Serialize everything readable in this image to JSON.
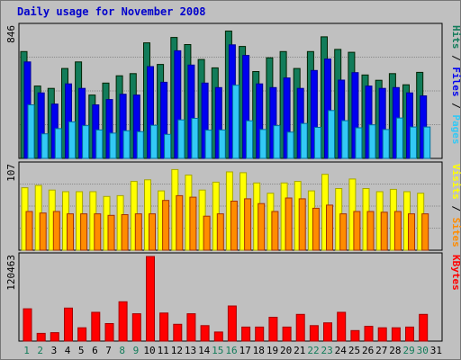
{
  "title": "Daily usage for November 2008",
  "colors": {
    "hits": "#127c5a",
    "files": "#0000f0",
    "pages": "#33c9f5",
    "visits": "#ffff00",
    "sites": "#ff8c00",
    "kbytes": "#ff0000",
    "weekend_day": "#127c5a",
    "weekday_day": "#000000",
    "title": "#0000cc",
    "panel": "#c0c0c0"
  },
  "chart_data": [
    {
      "type": "bar",
      "title": "Daily usage for November 2008",
      "ylabel_parts": [
        "Pages",
        "Files",
        "Hits"
      ],
      "ymax_label": "846",
      "ylim": [
        0,
        846
      ],
      "categories": [
        "1",
        "2",
        "3",
        "4",
        "5",
        "6",
        "7",
        "8",
        "9",
        "10",
        "11",
        "12",
        "13",
        "14",
        "15",
        "16",
        "17",
        "18",
        "19",
        "20",
        "21",
        "22",
        "23",
        "24",
        "25",
        "26",
        "27",
        "28",
        "29",
        "30",
        "31"
      ],
      "series": [
        {
          "name": "Hits",
          "values": [
            688,
            466,
            451,
            579,
            621,
            408,
            485,
            532,
            546,
            744,
            605,
            779,
            733,
            637,
            583,
            820,
            721,
            559,
            648,
            688,
            579,
            688,
            783,
            702,
            683,
            537,
            503,
            546,
            474,
            554,
            0
          ]
        },
        {
          "name": "Files",
          "values": [
            621,
            422,
            350,
            480,
            451,
            345,
            379,
            413,
            408,
            591,
            490,
            693,
            601,
            485,
            456,
            731,
            663,
            480,
            456,
            518,
            451,
            566,
            640,
            504,
            552,
            466,
            451,
            456,
            422,
            403,
            0
          ]
        },
        {
          "name": "Pages",
          "values": [
            345,
            158,
            192,
            235,
            211,
            183,
            163,
            178,
            172,
            213,
            155,
            248,
            258,
            182,
            183,
            471,
            242,
            186,
            211,
            169,
            225,
            200,
            308,
            243,
            197,
            216,
            186,
            260,
            202,
            202,
            0
          ]
        }
      ]
    },
    {
      "type": "bar",
      "ylabel_parts": [
        "Sites",
        "Visits"
      ],
      "ymax_label": "107",
      "ylim": [
        0,
        107
      ],
      "categories": [
        "1",
        "2",
        "3",
        "4",
        "5",
        "6",
        "7",
        "8",
        "9",
        "10",
        "11",
        "12",
        "13",
        "14",
        "15",
        "16",
        "17",
        "18",
        "19",
        "20",
        "21",
        "22",
        "23",
        "24",
        "25",
        "26",
        "27",
        "28",
        "29",
        "30",
        "31"
      ],
      "series": [
        {
          "name": "Visits",
          "values": [
            79,
            82,
            76,
            74,
            74,
            74,
            68,
            69,
            87,
            89,
            75,
            102,
            95,
            76,
            86,
            99,
            98,
            85,
            72,
            85,
            87,
            75,
            96,
            78,
            90,
            78,
            74,
            77,
            74,
            72,
            0
          ]
        },
        {
          "name": "Sites",
          "values": [
            49,
            47,
            49,
            46,
            46,
            46,
            44,
            45,
            46,
            46,
            63,
            69,
            67,
            43,
            46,
            62,
            65,
            59,
            49,
            66,
            65,
            53,
            57,
            46,
            49,
            49,
            48,
            49,
            46,
            46,
            0
          ]
        }
      ]
    },
    {
      "type": "bar",
      "ylabel_parts": [
        "KBytes"
      ],
      "ymax_label": "120463",
      "ylim": [
        0,
        120463
      ],
      "categories": [
        "1",
        "2",
        "3",
        "4",
        "5",
        "6",
        "7",
        "8",
        "9",
        "10",
        "11",
        "12",
        "13",
        "14",
        "15",
        "16",
        "17",
        "18",
        "19",
        "20",
        "21",
        "22",
        "23",
        "24",
        "25",
        "26",
        "27",
        "28",
        "29",
        "30",
        "31"
      ],
      "series": [
        {
          "name": "KBytes",
          "values": [
            46000,
            11000,
            12000,
            47000,
            19000,
            41000,
            25000,
            56000,
            39000,
            120463,
            40000,
            24000,
            39000,
            22000,
            13000,
            50000,
            20000,
            20000,
            34000,
            20000,
            38000,
            22000,
            26000,
            41000,
            15000,
            21000,
            19000,
            19000,
            20000,
            38000,
            0
          ]
        }
      ]
    }
  ],
  "day_colors": [
    "green",
    "green",
    "black",
    "black",
    "black",
    "black",
    "black",
    "green",
    "green",
    "black",
    "black",
    "black",
    "black",
    "black",
    "green",
    "green",
    "black",
    "black",
    "black",
    "black",
    "black",
    "green",
    "green",
    "black",
    "black",
    "black",
    "black",
    "black",
    "green",
    "green",
    "black"
  ]
}
